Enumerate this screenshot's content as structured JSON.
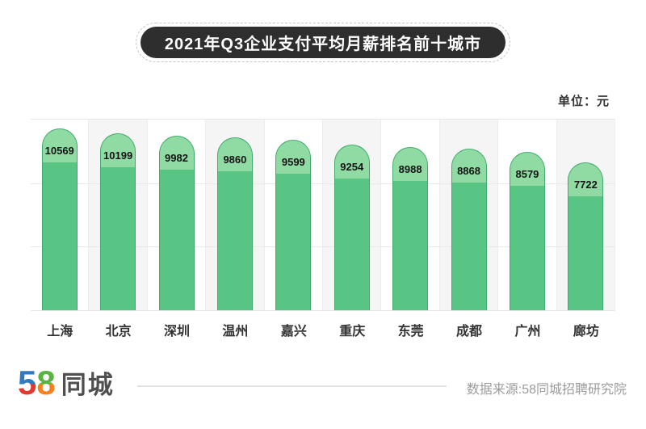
{
  "title": "2021年Q3企业支付平均月薪排名前十城市",
  "unit_label": "单位：元",
  "chart_data": {
    "type": "bar",
    "title": "2021年Q3企业支付平均月薪排名前十城市",
    "categories": [
      "上海",
      "北京",
      "深圳",
      "温州",
      "嘉兴",
      "重庆",
      "东莞",
      "成都",
      "广州",
      "廊坊"
    ],
    "values": [
      10569,
      10199,
      9982,
      9860,
      9599,
      9254,
      8988,
      8868,
      8579,
      7722
    ],
    "unit": "元",
    "value_labels_shown": true,
    "legend": "none",
    "grid": "horizontal, 3 equal bands, no axis tick labels",
    "bar_color": "#59c584",
    "bar_cap_color": "#8fdba3",
    "alt_column_background": "#f5f5f6"
  },
  "footer": {
    "logo": {
      "number_5": "5",
      "number_8": "8",
      "name": "同城"
    },
    "source": "数据来源:58同城招聘研究院"
  },
  "colors": {
    "title_pill_bg": "#2e2e2e",
    "title_text": "#ffffff",
    "bar_body": "#59c584",
    "bar_cap": "#8fdba3",
    "bar_outline": "#2f965b",
    "gridline": "#e8e8e8",
    "source_text": "#9b9b9b",
    "logo_blue": "#2f7ac1",
    "logo_red": "#e23a2e",
    "logo_green": "#58b440",
    "logo_orange": "#f48220"
  }
}
